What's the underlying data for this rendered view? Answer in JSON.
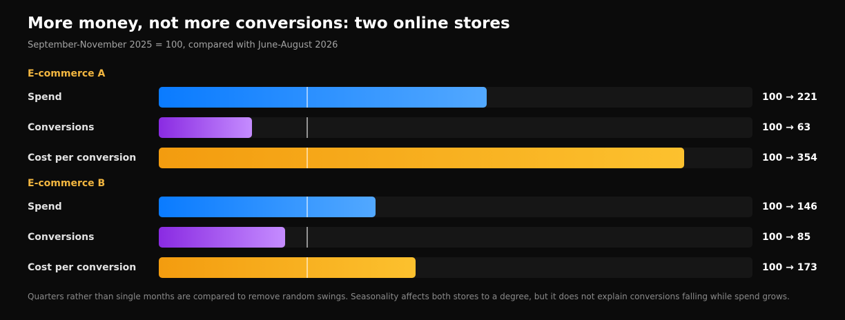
{
  "title": "More money, not more conversions: two online stores",
  "subtitle": "September-November 2025 = 100, compared with June-August 2026",
  "footnote": "Quarters rather than single months are compared to remove random swings. Seasonality affects both stores to a degree, but it does not explain conversions falling while spend grows.",
  "colors": {
    "spend": [
      "#0a7bff",
      "#52a8ff"
    ],
    "conversions": [
      "#8a2be2",
      "#c58cff"
    ],
    "cost": [
      "#f39c0f",
      "#fcc12e"
    ],
    "group_label": "#f2b640",
    "background": "#0b0b0b"
  },
  "chart_data": {
    "type": "bar",
    "orientation": "horizontal",
    "baseline": 100,
    "xlim": [
      0,
      400
    ],
    "groups": [
      {
        "name": "E-commerce A",
        "rows": [
          {
            "label": "Spend",
            "metric": "spend",
            "start": 100,
            "end": 221,
            "value_label": "100 → 221"
          },
          {
            "label": "Conversions",
            "metric": "conversions",
            "start": 100,
            "end": 63,
            "value_label": "100 → 63"
          },
          {
            "label": "Cost per conversion",
            "metric": "cost",
            "start": 100,
            "end": 354,
            "value_label": "100 → 354"
          }
        ]
      },
      {
        "name": "E-commerce B",
        "rows": [
          {
            "label": "Spend",
            "metric": "spend",
            "start": 100,
            "end": 146,
            "value_label": "100 → 146"
          },
          {
            "label": "Conversions",
            "metric": "conversions",
            "start": 100,
            "end": 85,
            "value_label": "100 → 85"
          },
          {
            "label": "Cost per conversion",
            "metric": "cost",
            "start": 100,
            "end": 173,
            "value_label": "100 → 173"
          }
        ]
      }
    ]
  }
}
